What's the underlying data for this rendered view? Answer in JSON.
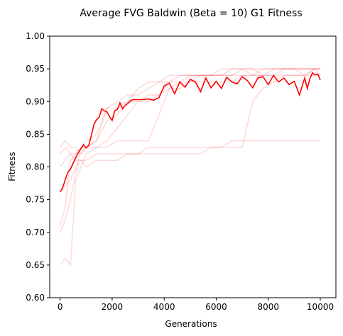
{
  "chart_data": {
    "type": "line",
    "title": "Average FVG Baldwin (Beta = 10) G1 Fitness",
    "xlabel": "Generations",
    "ylabel": "Fitness",
    "xlim": [
      -400,
      10600
    ],
    "ylim": [
      0.6,
      1.0
    ],
    "x_ticks": [
      0,
      2000,
      4000,
      6000,
      8000,
      10000
    ],
    "x_tick_labels": [
      "0",
      "2000",
      "4000",
      "6000",
      "8000",
      "10000"
    ],
    "y_ticks": [
      0.6,
      0.65,
      0.7,
      0.75,
      0.8,
      0.85,
      0.9,
      0.95,
      1.0
    ],
    "y_tick_labels": [
      "0.60",
      "0.65",
      "0.70",
      "0.75",
      "0.80",
      "0.85",
      "0.90",
      "0.95",
      "1.00"
    ],
    "grid": false,
    "colors": {
      "average": "#ff0000",
      "runs": "#ff0000",
      "runs_opacity": 0.15
    },
    "average": {
      "x": [
        0,
        100,
        200,
        300,
        400,
        500,
        600,
        700,
        800,
        900,
        1000,
        1100,
        1200,
        1300,
        1400,
        1500,
        1600,
        1700,
        1800,
        1900,
        2000,
        2100,
        2200,
        2300,
        2400,
        2500,
        2600,
        2700,
        2800,
        2900,
        3000,
        3200,
        3400,
        3600,
        3800,
        4000,
        4200,
        4400,
        4600,
        4800,
        5000,
        5200,
        5400,
        5600,
        5800,
        6000,
        6200,
        6400,
        6600,
        6800,
        7000,
        7200,
        7400,
        7600,
        7800,
        8000,
        8200,
        8400,
        8600,
        8800,
        9000,
        9200,
        9400,
        9500,
        9600,
        9700,
        9800,
        9900,
        10000
      ],
      "values": [
        0.762,
        0.768,
        0.781,
        0.792,
        0.797,
        0.806,
        0.814,
        0.822,
        0.828,
        0.834,
        0.829,
        0.833,
        0.848,
        0.865,
        0.872,
        0.876,
        0.889,
        0.886,
        0.884,
        0.877,
        0.871,
        0.886,
        0.888,
        0.898,
        0.889,
        0.894,
        0.897,
        0.901,
        0.903,
        0.903,
        0.903,
        0.903,
        0.904,
        0.902,
        0.906,
        0.924,
        0.928,
        0.912,
        0.93,
        0.922,
        0.934,
        0.93,
        0.915,
        0.936,
        0.921,
        0.931,
        0.92,
        0.937,
        0.93,
        0.927,
        0.938,
        0.932,
        0.921,
        0.936,
        0.938,
        0.926,
        0.94,
        0.93,
        0.936,
        0.926,
        0.931,
        0.91,
        0.936,
        0.92,
        0.935,
        0.944,
        0.941,
        0.942,
        0.933
      ]
    },
    "runs": [
      {
        "x": [
          0,
          200,
          400,
          600,
          800,
          1000,
          1400,
          1800,
          2200,
          2600,
          3000,
          3400,
          3800,
          4200,
          4600,
          5000,
          5400,
          5800,
          6200,
          6600,
          7000,
          7400,
          7800,
          8200,
          8600,
          9000,
          9400,
          9800,
          10000
        ],
        "values": [
          0.71,
          0.74,
          0.81,
          0.82,
          0.83,
          0.84,
          0.85,
          0.89,
          0.9,
          0.91,
          0.91,
          0.92,
          0.93,
          0.93,
          0.94,
          0.94,
          0.94,
          0.94,
          0.94,
          0.94,
          0.95,
          0.95,
          0.95,
          0.95,
          0.95,
          0.95,
          0.95,
          0.95,
          0.95
        ]
      },
      {
        "x": [
          0,
          200,
          400,
          600,
          800,
          1000,
          1400,
          1800,
          2200,
          2600,
          3000,
          3400,
          3800,
          4200,
          4600,
          5000,
          5400,
          5800,
          6200,
          6600,
          7000,
          7400,
          7800,
          8200,
          8600,
          9000,
          9400,
          9800,
          10000
        ],
        "values": [
          0.65,
          0.66,
          0.65,
          0.78,
          0.8,
          0.82,
          0.83,
          0.84,
          0.86,
          0.88,
          0.9,
          0.91,
          0.91,
          0.93,
          0.93,
          0.94,
          0.94,
          0.94,
          0.94,
          0.95,
          0.95,
          0.95,
          0.94,
          0.95,
          0.95,
          0.95,
          0.94,
          0.95,
          0.95
        ]
      },
      {
        "x": [
          0,
          200,
          400,
          600,
          800,
          1000,
          1400,
          1800,
          2200,
          2600,
          3000,
          3400,
          3800,
          4200,
          4600,
          5000,
          5400,
          5800,
          6200,
          6600,
          7000,
          7400,
          7800,
          8200,
          8600,
          9000,
          9400,
          9800,
          10000
        ],
        "values": [
          0.83,
          0.84,
          0.83,
          0.83,
          0.82,
          0.83,
          0.84,
          0.87,
          0.88,
          0.9,
          0.92,
          0.93,
          0.93,
          0.94,
          0.94,
          0.94,
          0.94,
          0.94,
          0.95,
          0.95,
          0.95,
          0.94,
          0.95,
          0.95,
          0.95,
          0.95,
          0.95,
          0.95,
          0.94
        ]
      },
      {
        "x": [
          0,
          200,
          400,
          600,
          800,
          1000,
          1400,
          1800,
          2200,
          2600,
          3000,
          3400,
          3800,
          4200,
          4600,
          5000,
          5400,
          5800,
          6200,
          6600,
          7000,
          7400,
          7800,
          8200,
          8600,
          9000,
          9400,
          9800,
          10000
        ],
        "values": [
          0.76,
          0.77,
          0.78,
          0.8,
          0.81,
          0.81,
          0.82,
          0.82,
          0.82,
          0.82,
          0.82,
          0.83,
          0.83,
          0.83,
          0.83,
          0.83,
          0.83,
          0.83,
          0.83,
          0.84,
          0.84,
          0.84,
          0.84,
          0.84,
          0.84,
          0.84,
          0.84,
          0.84,
          0.84
        ]
      },
      {
        "x": [
          0,
          200,
          400,
          600,
          800,
          1000,
          1400,
          1800,
          2200,
          2600,
          3000,
          3400,
          3800,
          4200,
          4600,
          5000,
          5400,
          5800,
          6200,
          6600,
          7000,
          7400,
          7800,
          8200,
          8600,
          9000,
          9400,
          9800,
          10000
        ],
        "values": [
          0.82,
          0.83,
          0.82,
          0.81,
          0.81,
          0.8,
          0.81,
          0.81,
          0.81,
          0.82,
          0.82,
          0.82,
          0.82,
          0.82,
          0.82,
          0.82,
          0.82,
          0.83,
          0.83,
          0.83,
          0.83,
          0.9,
          0.92,
          0.93,
          0.94,
          0.94,
          0.94,
          0.95,
          0.95
        ]
      },
      {
        "x": [
          0,
          200,
          400,
          600,
          800,
          1000,
          1400,
          1800,
          2200,
          2600,
          3000,
          3400,
          3800,
          4200,
          4600,
          5000,
          5400,
          5800,
          6200,
          6600,
          7000,
          7400,
          7800,
          8200,
          8600,
          9000,
          9400,
          9800,
          10000
        ],
        "values": [
          0.7,
          0.72,
          0.75,
          0.79,
          0.83,
          0.83,
          0.84,
          0.89,
          0.89,
          0.9,
          0.9,
          0.9,
          0.91,
          0.92,
          0.93,
          0.93,
          0.94,
          0.94,
          0.94,
          0.94,
          0.94,
          0.94,
          0.94,
          0.94,
          0.95,
          0.95,
          0.95,
          0.95,
          0.95
        ]
      },
      {
        "x": [
          0,
          200,
          400,
          600,
          800,
          1000,
          1400,
          1800,
          2200,
          2600,
          3000,
          3400,
          3800,
          4200,
          4600,
          5000,
          5400,
          5800,
          6200,
          6600,
          7000,
          7400,
          7800,
          8200,
          8600,
          9000,
          9400,
          9800,
          10000
        ],
        "values": [
          0.8,
          0.81,
          0.82,
          0.82,
          0.82,
          0.83,
          0.83,
          0.83,
          0.84,
          0.84,
          0.84,
          0.84,
          0.88,
          0.92,
          0.92,
          0.93,
          0.93,
          0.93,
          0.93,
          0.93,
          0.94,
          0.94,
          0.94,
          0.94,
          0.94,
          0.94,
          0.94,
          0.94,
          0.94
        ]
      }
    ]
  }
}
